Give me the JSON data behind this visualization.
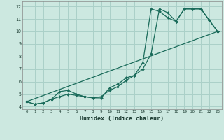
{
  "xlabel": "Humidex (Indice chaleur)",
  "ylabel": "",
  "background_color": "#cce8e0",
  "grid_color": "#aad0c8",
  "line_color": "#1a6b5a",
  "xlim": [
    -0.5,
    23.5
  ],
  "ylim": [
    3.8,
    12.4
  ],
  "xticks": [
    0,
    1,
    2,
    3,
    4,
    5,
    6,
    7,
    8,
    9,
    10,
    11,
    12,
    13,
    14,
    15,
    16,
    17,
    18,
    19,
    20,
    21,
    22,
    23
  ],
  "yticks": [
    4,
    5,
    6,
    7,
    8,
    9,
    10,
    11,
    12
  ],
  "line1_x": [
    0,
    1,
    2,
    3,
    4,
    5,
    6,
    7,
    8,
    9,
    10,
    11,
    12,
    13,
    14,
    15,
    16,
    17,
    18,
    19,
    20,
    21,
    22,
    23
  ],
  "line1_y": [
    4.4,
    4.2,
    4.3,
    4.6,
    4.8,
    5.0,
    4.9,
    4.8,
    4.7,
    4.7,
    5.5,
    5.8,
    6.3,
    6.5,
    7.0,
    8.2,
    11.8,
    11.5,
    10.8,
    11.8,
    11.8,
    11.8,
    10.9,
    10.0
  ],
  "line2_x": [
    0,
    1,
    2,
    3,
    4,
    5,
    6,
    7,
    8,
    9,
    10,
    11,
    12,
    13,
    14,
    15,
    16,
    17,
    18,
    19,
    20,
    21,
    22,
    23
  ],
  "line2_y": [
    4.4,
    4.2,
    4.3,
    4.6,
    5.2,
    5.3,
    5.0,
    4.8,
    4.7,
    4.8,
    5.3,
    5.6,
    6.1,
    6.5,
    7.5,
    11.8,
    11.6,
    11.1,
    10.8,
    11.8,
    11.8,
    11.8,
    10.9,
    10.0
  ],
  "line3_x": [
    0,
    23
  ],
  "line3_y": [
    4.4,
    10.0
  ]
}
